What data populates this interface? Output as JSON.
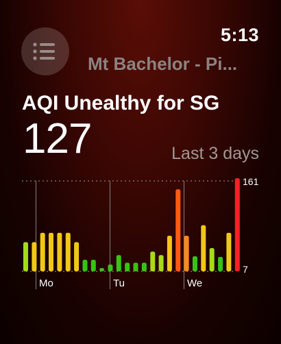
{
  "header": {
    "time": "5:13",
    "location": "Mt Bachelor - Pi..."
  },
  "aqi": {
    "title": "AQI Unealthy for SG",
    "value": "127",
    "range_label": "Last 3 days"
  },
  "icons": {
    "menu": "list-icon"
  },
  "colors": {
    "green": "#36c414",
    "lime": "#a6dc16",
    "yellow": "#f0c816",
    "orange": "#ff8a1c",
    "orange_red": "#ff5a14",
    "red": "#ff1e24"
  },
  "chart_data": {
    "type": "bar",
    "ylim": [
      7,
      161
    ],
    "ytick_labels": [
      "161",
      "7"
    ],
    "x_day_labels": [
      "Mo",
      "Tu",
      "We"
    ],
    "values": [
      52,
      52,
      68,
      68,
      68,
      68,
      52,
      22,
      22,
      8,
      14,
      30,
      17,
      17,
      17,
      36,
      30,
      63,
      142,
      63,
      28,
      81,
      42,
      27,
      68,
      161
    ],
    "colors": [
      "lime",
      "yellow",
      "yellow",
      "yellow",
      "yellow",
      "yellow",
      "yellow",
      "green",
      "green",
      "green",
      "green",
      "green",
      "green",
      "green",
      "green",
      "lime",
      "lime",
      "yellow",
      "orange_red",
      "orange",
      "green",
      "yellow",
      "lime",
      "green",
      "yellow",
      "red"
    ]
  }
}
